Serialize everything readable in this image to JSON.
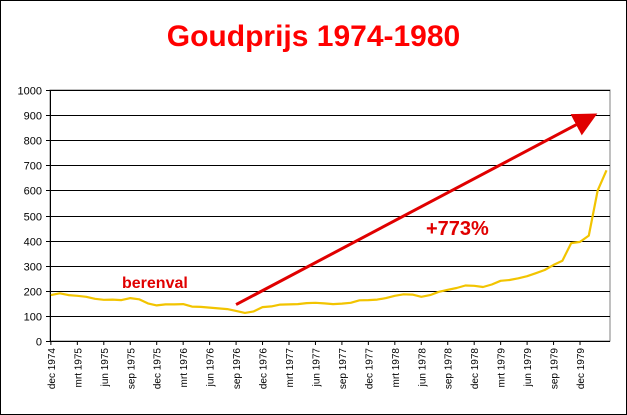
{
  "title": "Goudprijs 1974-1980",
  "chart_data": {
    "type": "line",
    "title": "Goudprijs 1974-1980",
    "xlabel": "",
    "ylabel": "",
    "ylim": [
      0,
      1000
    ],
    "yticks": [
      0,
      100,
      200,
      300,
      400,
      500,
      600,
      700,
      800,
      900,
      1000
    ],
    "grid": true,
    "legend": "none",
    "colors": {
      "series": "#f2c400",
      "annotation": "#e00000",
      "plot_bg": "#ffffff",
      "grid": "#000000"
    },
    "x_tick_labels": [
      "dec 1974",
      "mrt 1975",
      "jun 1975",
      "sep 1975",
      "dec 1975",
      "mrt 1976",
      "jun 1976",
      "sep 1976",
      "dec 1976",
      "mrt 1977",
      "jun 1977",
      "sep 1977",
      "dec 1977",
      "mrt 1978",
      "jun 1978",
      "sep 1978",
      "dec 1978",
      "mrt 1979",
      "jun 1979",
      "sep 1979",
      "dec 1979"
    ],
    "series": [
      {
        "name": "",
        "x": [
          "1974-12",
          "1975-01",
          "1975-02",
          "1975-03",
          "1975-04",
          "1975-05",
          "1975-06",
          "1975-07",
          "1975-08",
          "1975-09",
          "1975-10",
          "1975-11",
          "1975-12",
          "1976-01",
          "1976-02",
          "1976-03",
          "1976-04",
          "1976-05",
          "1976-06",
          "1976-07",
          "1976-08",
          "1976-09",
          "1976-10",
          "1976-11",
          "1976-12",
          "1977-01",
          "1977-02",
          "1977-03",
          "1977-04",
          "1977-05",
          "1977-06",
          "1977-07",
          "1977-08",
          "1977-09",
          "1977-10",
          "1977-11",
          "1977-12",
          "1978-01",
          "1978-02",
          "1978-03",
          "1978-04",
          "1978-05",
          "1978-06",
          "1978-07",
          "1978-08",
          "1978-09",
          "1978-10",
          "1978-11",
          "1978-12",
          "1979-01",
          "1979-02",
          "1979-03",
          "1979-04",
          "1979-05",
          "1979-06",
          "1979-07",
          "1979-08",
          "1979-09",
          "1979-10",
          "1979-11",
          "1979-12",
          "1980-01",
          "1980-02",
          "1980-03"
        ],
        "values": [
          183,
          190,
          183,
          180,
          176,
          168,
          164,
          165,
          163,
          171,
          166,
          150,
          142,
          146,
          146,
          147,
          137,
          136,
          133,
          130,
          127,
          120,
          112,
          118,
          135,
          138,
          145,
          146,
          147,
          151,
          152,
          150,
          147,
          149,
          152,
          162,
          163,
          165,
          171,
          180,
          186,
          185,
          176,
          183,
          196,
          204,
          211,
          221,
          220,
          215,
          225,
          240,
          243,
          250,
          258,
          270,
          283,
          303,
          320,
          390,
          395,
          420,
          600,
          680
        ]
      }
    ],
    "annotations": [
      {
        "text": "berenval",
        "color": "#e00000"
      },
      {
        "text": "+773%",
        "color": "#e00000"
      }
    ]
  }
}
